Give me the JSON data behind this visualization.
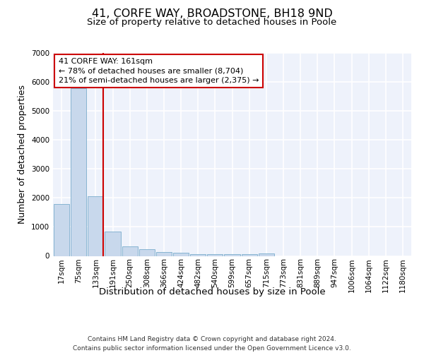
{
  "title_line1": "41, CORFE WAY, BROADSTONE, BH18 9ND",
  "title_line2": "Size of property relative to detached houses in Poole",
  "xlabel": "Distribution of detached houses by size in Poole",
  "ylabel": "Number of detached properties",
  "categories": [
    "17sqm",
    "75sqm",
    "133sqm",
    "191sqm",
    "250sqm",
    "308sqm",
    "366sqm",
    "424sqm",
    "482sqm",
    "540sqm",
    "599sqm",
    "657sqm",
    "715sqm",
    "773sqm",
    "831sqm",
    "889sqm",
    "947sqm",
    "1006sqm",
    "1064sqm",
    "1122sqm",
    "1180sqm"
  ],
  "values": [
    1800,
    5780,
    2060,
    830,
    340,
    220,
    140,
    100,
    70,
    60,
    55,
    50,
    80,
    0,
    0,
    0,
    0,
    0,
    0,
    0,
    0
  ],
  "bar_color": "#c8d8ec",
  "bar_edge_color": "#7aaccc",
  "marker_line_color": "#cc0000",
  "annotation_line1": "41 CORFE WAY: 161sqm",
  "annotation_line2": "← 78% of detached houses are smaller (8,704)",
  "annotation_line3": "21% of semi-detached houses are larger (2,375) →",
  "footer_line1": "Contains HM Land Registry data © Crown copyright and database right 2024.",
  "footer_line2": "Contains public sector information licensed under the Open Government Licence v3.0.",
  "ylim": [
    0,
    7000
  ],
  "yticks": [
    0,
    1000,
    2000,
    3000,
    4000,
    5000,
    6000,
    7000
  ],
  "bg_color": "#eef2fb",
  "grid_color": "#ffffff",
  "title_fontsize": 11.5,
  "subtitle_fontsize": 9.5,
  "axis_label_fontsize": 9,
  "tick_fontsize": 7.5,
  "footer_fontsize": 6.5
}
